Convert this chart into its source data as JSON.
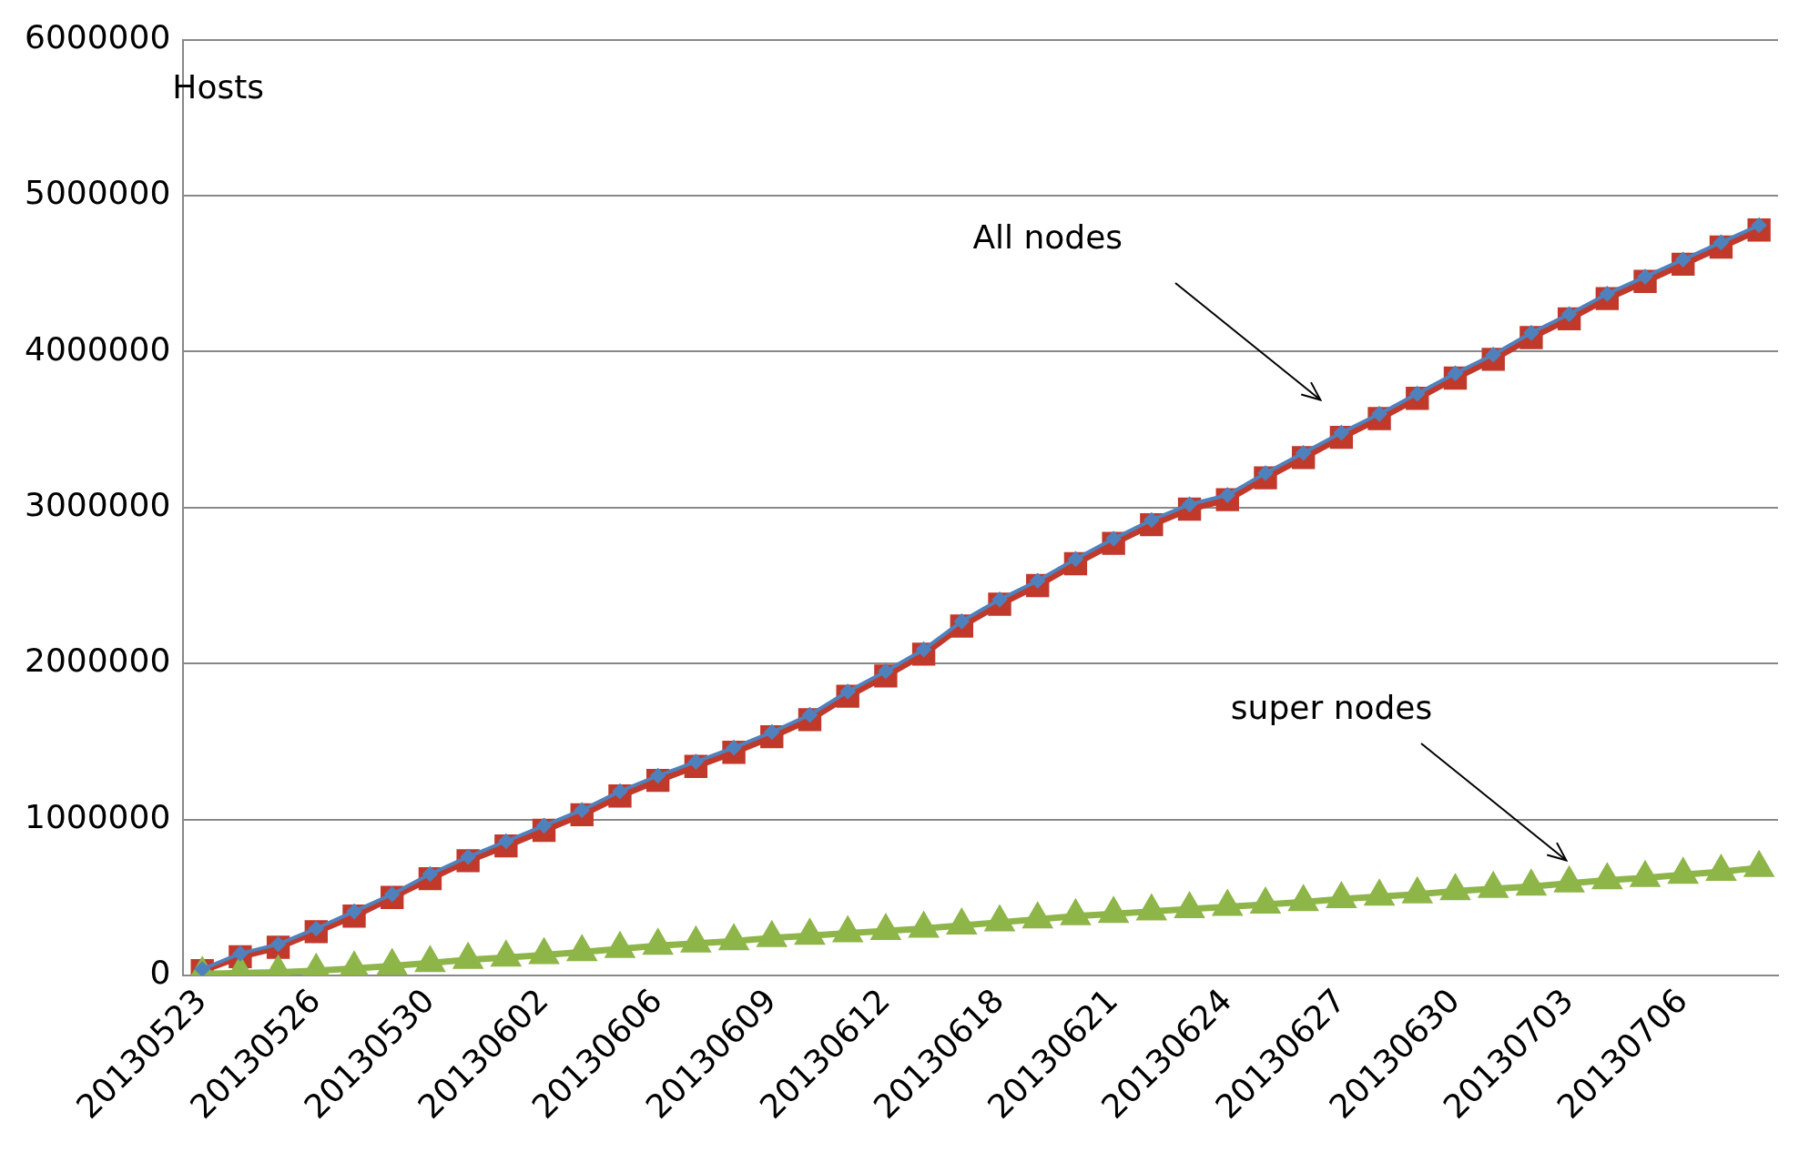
{
  "chart_data": {
    "type": "line",
    "ylabel": "Hosts",
    "categories": [
      "20130523",
      null,
      null,
      "20130526",
      null,
      null,
      "20130530",
      null,
      null,
      "20130602",
      null,
      null,
      "20130606",
      null,
      null,
      "20130609",
      null,
      null,
      "20130612",
      null,
      null,
      "20130618",
      null,
      null,
      "20130621",
      null,
      null,
      "20130624",
      null,
      null,
      "20130627",
      null,
      null,
      "20130630",
      null,
      null,
      "20130703",
      null,
      null,
      "20130706",
      null,
      null
    ],
    "series": [
      {
        "color": "#4f81bd",
        "marker": "diamond",
        "values": [
          40000,
          140000,
          200000,
          300000,
          410000,
          520000,
          650000,
          760000,
          860000,
          960000,
          1060000,
          1180000,
          1280000,
          1370000,
          1460000,
          1560000,
          1670000,
          1820000,
          1950000,
          2090000,
          2270000,
          2410000,
          2530000,
          2670000,
          2800000,
          2920000,
          3020000,
          3080000,
          3220000,
          3350000,
          3480000,
          3600000,
          3730000,
          3860000,
          3980000,
          4120000,
          4240000,
          4370000,
          4480000,
          4590000,
          4700000,
          4810000
        ]
      },
      {
        "color": "#c0392b",
        "marker": "square",
        "values": [
          30000,
          120000,
          180000,
          280000,
          380000,
          500000,
          620000,
          735000,
          830000,
          930000,
          1030000,
          1150000,
          1250000,
          1340000,
          1430000,
          1530000,
          1640000,
          1790000,
          1920000,
          2060000,
          2240000,
          2380000,
          2500000,
          2640000,
          2770000,
          2890000,
          2990000,
          3050000,
          3190000,
          3320000,
          3450000,
          3570000,
          3700000,
          3830000,
          3950000,
          4090000,
          4210000,
          4340000,
          4450000,
          4560000,
          4670000,
          4780000
        ]
      },
      {
        "color": "#8db548",
        "marker": "triangle",
        "values": [
          10000,
          15000,
          20000,
          30000,
          45000,
          60000,
          80000,
          100000,
          115000,
          130000,
          150000,
          170000,
          190000,
          205000,
          220000,
          240000,
          255000,
          270000,
          285000,
          300000,
          320000,
          340000,
          360000,
          380000,
          395000,
          410000,
          425000,
          440000,
          455000,
          470000,
          490000,
          505000,
          520000,
          540000,
          555000,
          570000,
          590000,
          610000,
          625000,
          645000,
          665000,
          690000
        ]
      }
    ],
    "ylim": [
      0,
      6000000
    ],
    "yticks": [
      0,
      1000000,
      2000000,
      3000000,
      4000000,
      5000000,
      6000000
    ],
    "grid": "y",
    "legend": false,
    "annotations": [
      "All nodes",
      "super nodes"
    ]
  }
}
